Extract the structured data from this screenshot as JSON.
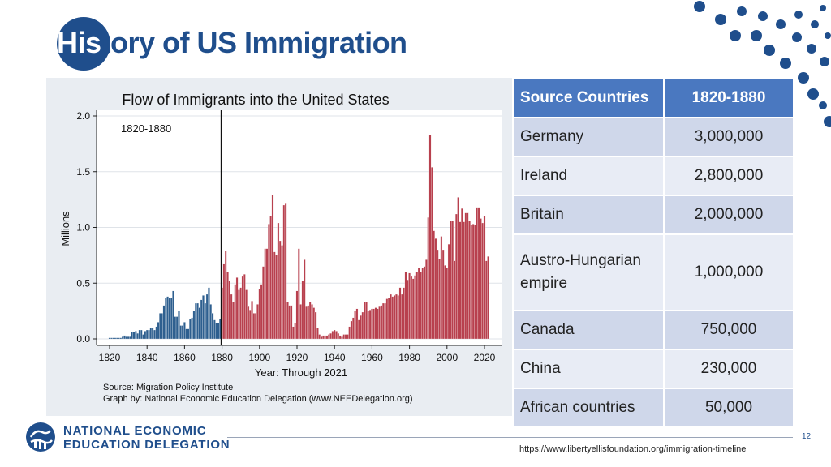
{
  "slide": {
    "title_front": "His",
    "title_rest": "tory of US Immigration",
    "page_number": "12",
    "url": "https://www.libertyellisfoundation.org/immigration-timeline"
  },
  "logo": {
    "line1": "NATIONAL ECONOMIC",
    "line2": "EDUCATION DELEGATION"
  },
  "colors": {
    "brand": "#1f4e8c",
    "pre1880": "#2e5f8f",
    "post1880": "#b8404e",
    "table_header": "#4a78c0"
  },
  "chart_data": {
    "type": "bar",
    "title": "Flow of Immigrants into the United States",
    "ylabel": "Millions",
    "xlabel": "Year: Through 2021",
    "annotation": "1820-1880",
    "marker_year": 1880,
    "xlim": [
      1820,
      2021
    ],
    "ylim": [
      0,
      2.0
    ],
    "xticks": [
      1820,
      1840,
      1860,
      1880,
      1900,
      1920,
      1940,
      1960,
      1980,
      2000,
      2020
    ],
    "yticks": [
      "0.0",
      "0.5",
      "1.0",
      "1.5",
      "2.0"
    ],
    "source_line1": "Source: Migration Policy Institute",
    "source_line2": "Graph by: National Economic Education Delegation (www.NEEDelegation.org)",
    "series": [
      {
        "x_start": 1820,
        "values": [
          0.01,
          0.01,
          0.01,
          0.01,
          0.01,
          0.01,
          0.01,
          0.02,
          0.03,
          0.02,
          0.02,
          0.02,
          0.06,
          0.06,
          0.07,
          0.05,
          0.08,
          0.08,
          0.04,
          0.07,
          0.08,
          0.08,
          0.1,
          0.1,
          0.08,
          0.11,
          0.15,
          0.23,
          0.23,
          0.3,
          0.37,
          0.38,
          0.37,
          0.37,
          0.43,
          0.2,
          0.2,
          0.25,
          0.12,
          0.12,
          0.15,
          0.09,
          0.09,
          0.18,
          0.19,
          0.25,
          0.32,
          0.32,
          0.28,
          0.35,
          0.39,
          0.32,
          0.4,
          0.46,
          0.31,
          0.23,
          0.17,
          0.14,
          0.14,
          0.18,
          0.46,
          0.67,
          0.79,
          0.6,
          0.52,
          0.4,
          0.33,
          0.49,
          0.55,
          0.44,
          0.46,
          0.56,
          0.58,
          0.44,
          0.29,
          0.26,
          0.34,
          0.23,
          0.23,
          0.31,
          0.45,
          0.49,
          0.65,
          0.81,
          0.81,
          1.03,
          1.1,
          1.29,
          0.78,
          0.75,
          1.04,
          0.88,
          0.84,
          1.2,
          1.22,
          0.33,
          0.3,
          0.3,
          0.11,
          0.14,
          0.43,
          0.81,
          0.31,
          0.52,
          0.71,
          0.29,
          0.3,
          0.33,
          0.31,
          0.28,
          0.24,
          0.1,
          0.04,
          0.02,
          0.03,
          0.03,
          0.03,
          0.04,
          0.05,
          0.07,
          0.08,
          0.07,
          0.05,
          0.03,
          0.02,
          0.04,
          0.04,
          0.04,
          0.11,
          0.16,
          0.19,
          0.25,
          0.27,
          0.17,
          0.21,
          0.24,
          0.33,
          0.33,
          0.25,
          0.26,
          0.27,
          0.27,
          0.28,
          0.27,
          0.29,
          0.3,
          0.32,
          0.32,
          0.36,
          0.37,
          0.4,
          0.38,
          0.39,
          0.4,
          0.39,
          0.46,
          0.4,
          0.46,
          0.6,
          0.53,
          0.59,
          0.56,
          0.54,
          0.57,
          0.6,
          0.64,
          0.6,
          0.64,
          0.65,
          0.71,
          1.09,
          1.83,
          1.54,
          0.97,
          0.9,
          0.8,
          0.72,
          0.92,
          0.8,
          0.66,
          0.64,
          0.85,
          1.06,
          1.06,
          0.7,
          1.12,
          1.27,
          1.05,
          1.17,
          1.05,
          1.13,
          1.13,
          1.06,
          1.02,
          1.03,
          1.02,
          1.18,
          1.18,
          1.08,
          1.04,
          1.1,
          0.7,
          0.74
        ]
      }
    ]
  },
  "table": {
    "headers": [
      "Source Countries",
      "1820-1880"
    ],
    "rows": [
      {
        "country": "Germany",
        "count": "3,000,000"
      },
      {
        "country": "Ireland",
        "count": "2,800,000"
      },
      {
        "country": "Britain",
        "count": "2,000,000"
      },
      {
        "country": "Austro-Hungarian",
        "country_line2": "empire",
        "count": "1,000,000"
      },
      {
        "country": "Canada",
        "count": "750,000"
      },
      {
        "country": "China",
        "count": "230,000"
      },
      {
        "country": "African countries",
        "count": "50,000"
      }
    ]
  }
}
